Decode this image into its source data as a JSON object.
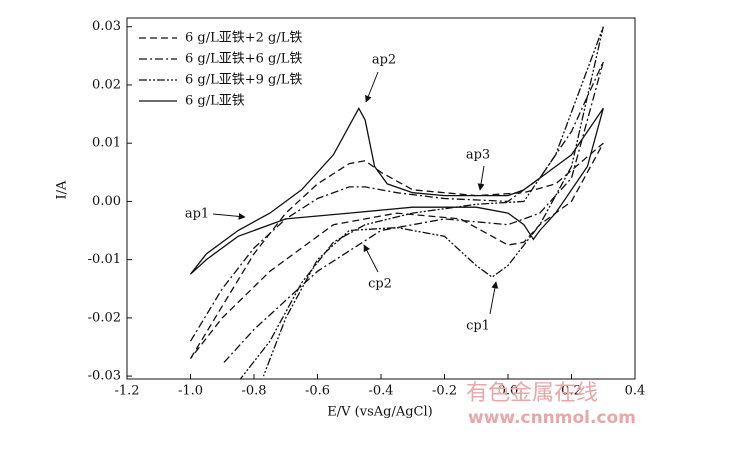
{
  "chart_data": {
    "type": "line",
    "xlabel": "E/V (vsAg/AgCl)",
    "ylabel": "I/A",
    "xlim": [
      -1.2,
      0.4
    ],
    "xticks": [
      -1.2,
      {
        "value": -1.0,
        "label": "-1.0"
      },
      -0.8,
      -0.6,
      -0.4,
      -0.2,
      {
        "value": 0,
        "label": "0.0"
      },
      0.2,
      0.4
    ],
    "ylim": [
      -0.0305,
      0.0315
    ],
    "yticks": [
      0.03,
      0.02,
      0.01,
      {
        "value": 0,
        "label": "0.00"
      },
      -0.01,
      -0.02,
      -0.03
    ],
    "legend": "upper left",
    "series": [
      {
        "name": "6 g/L亚铁+2 g/L铁",
        "color": "#111111",
        "dash": "7,4",
        "x": [
          -1.0,
          -0.9,
          -0.8,
          -0.7,
          -0.6,
          -0.5,
          -0.45,
          -0.4,
          -0.3,
          -0.1,
          0.05,
          0.15,
          0.3,
          0.2,
          0.1,
          0.05,
          0.0,
          -0.05,
          -0.15,
          -0.35,
          -0.55,
          -0.75,
          -0.9,
          -1.0
        ],
        "values": [
          -0.027,
          -0.018,
          -0.009,
          -0.002,
          0.003,
          0.0065,
          0.007,
          0.005,
          0.002,
          0.001,
          0.0015,
          0.003,
          0.01,
          0.0,
          -0.004,
          -0.007,
          -0.0075,
          -0.006,
          -0.003,
          -0.002,
          -0.004,
          -0.012,
          -0.02,
          -0.027
        ]
      },
      {
        "name": "6 g/L亚铁+6 g/L铁",
        "color": "#111111",
        "dash": "8,3,2,3",
        "x": [
          -1.0,
          -0.9,
          -0.8,
          -0.7,
          -0.6,
          -0.5,
          -0.45,
          -0.35,
          -0.2,
          0.0,
          0.1,
          0.2,
          0.3,
          0.2,
          0.1,
          0.0,
          -0.2,
          -0.4,
          -0.6,
          -0.8,
          -0.9
        ],
        "values": [
          -0.024,
          -0.015,
          -0.008,
          -0.003,
          0.0005,
          0.0025,
          0.0025,
          0.0015,
          0.0005,
          0.0,
          0.004,
          0.012,
          0.024,
          0.004,
          -0.002,
          -0.004,
          -0.003,
          -0.005,
          -0.012,
          -0.022,
          -0.028
        ]
      },
      {
        "name": "6 g/L亚铁+9 g/L铁",
        "color": "#111111",
        "dash": "8,2,2,2,2,2",
        "x": [
          -0.85,
          -0.75,
          -0.65,
          -0.55,
          -0.45,
          -0.3,
          -0.1,
          0.05,
          0.15,
          0.3,
          0.2,
          0.1,
          0.0,
          -0.05,
          -0.1,
          -0.2,
          -0.35,
          -0.5,
          -0.6,
          -0.7,
          -0.77
        ],
        "values": [
          -0.031,
          -0.024,
          -0.014,
          -0.007,
          -0.004,
          -0.002,
          -0.0005,
          0.0,
          0.008,
          0.03,
          0.006,
          -0.004,
          -0.011,
          -0.013,
          -0.011,
          -0.006,
          -0.0045,
          -0.005,
          -0.01,
          -0.02,
          -0.03
        ]
      },
      {
        "name": "6 g/L亚铁",
        "color": "#111111",
        "dash": "none",
        "x": [
          -1.0,
          -0.95,
          -0.85,
          -0.75,
          -0.65,
          -0.55,
          -0.5,
          -0.47,
          -0.45,
          -0.42,
          -0.38,
          -0.3,
          -0.2,
          -0.1,
          0.0,
          0.05,
          0.1,
          0.2,
          0.3,
          0.25,
          0.15,
          0.1,
          0.08,
          0.05,
          0.0,
          -0.1,
          -0.3,
          -0.5,
          -0.7,
          -0.85,
          -0.95,
          -1.0
        ],
        "values": [
          -0.0125,
          -0.009,
          -0.005,
          -0.002,
          0.002,
          0.008,
          0.013,
          0.016,
          0.014,
          0.006,
          0.003,
          0.0015,
          0.001,
          0.001,
          0.001,
          0.002,
          0.004,
          0.008,
          0.016,
          0.006,
          -0.002,
          -0.005,
          -0.0065,
          -0.004,
          -0.002,
          -0.001,
          -0.001,
          -0.002,
          -0.003,
          -0.006,
          -0.01,
          -0.0125
        ]
      }
    ],
    "annotations": [
      "ap2",
      "ap3",
      "ap1",
      "cp2",
      "cp1"
    ],
    "watermark": [
      "有色金属在线",
      "www.cnnmol.com"
    ]
  }
}
